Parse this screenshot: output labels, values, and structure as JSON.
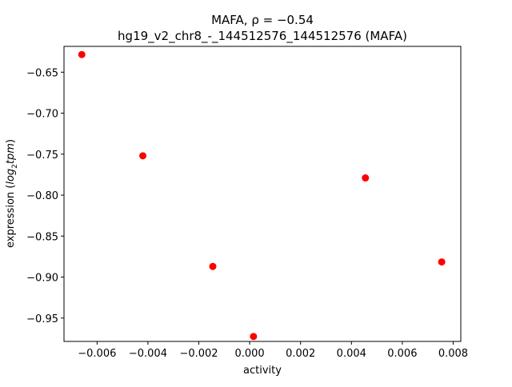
{
  "chart_data": {
    "type": "scatter",
    "title_line1": "MAFA, ρ = −0.54",
    "title_line2": "hg19_v2_chr8_-_144512576_144512576 (MAFA)",
    "xlabel": "activity",
    "ylabel_prefix": "expression (",
    "ylabel_math_log": "log",
    "ylabel_math_sub": "2",
    "ylabel_math_rest": "tpm",
    "ylabel_suffix": ")",
    "xlim": [
      -0.0073,
      0.0083
    ],
    "ylim": [
      -0.9785,
      -0.6185
    ],
    "xticks": [
      -0.006,
      -0.004,
      -0.002,
      0.0,
      0.002,
      0.004,
      0.006,
      0.008
    ],
    "xtick_labels": [
      "−0.006",
      "−0.004",
      "−0.002",
      "0.000",
      "0.002",
      "0.004",
      "0.006",
      "0.008"
    ],
    "yticks": [
      -0.95,
      -0.9,
      -0.85,
      -0.8,
      -0.75,
      -0.7,
      -0.65
    ],
    "ytick_labels": [
      "−0.95",
      "−0.90",
      "−0.85",
      "−0.80",
      "−0.75",
      "−0.70",
      "−0.65"
    ],
    "grid": false,
    "marker_color": "#ff0000",
    "points": [
      {
        "x": -0.0066,
        "y": -0.6285
      },
      {
        "x": -0.0042,
        "y": -0.752
      },
      {
        "x": -0.00145,
        "y": -0.887
      },
      {
        "x": 0.00015,
        "y": -0.9725
      },
      {
        "x": 0.00455,
        "y": -0.779
      },
      {
        "x": 0.00755,
        "y": -0.8815
      }
    ]
  }
}
